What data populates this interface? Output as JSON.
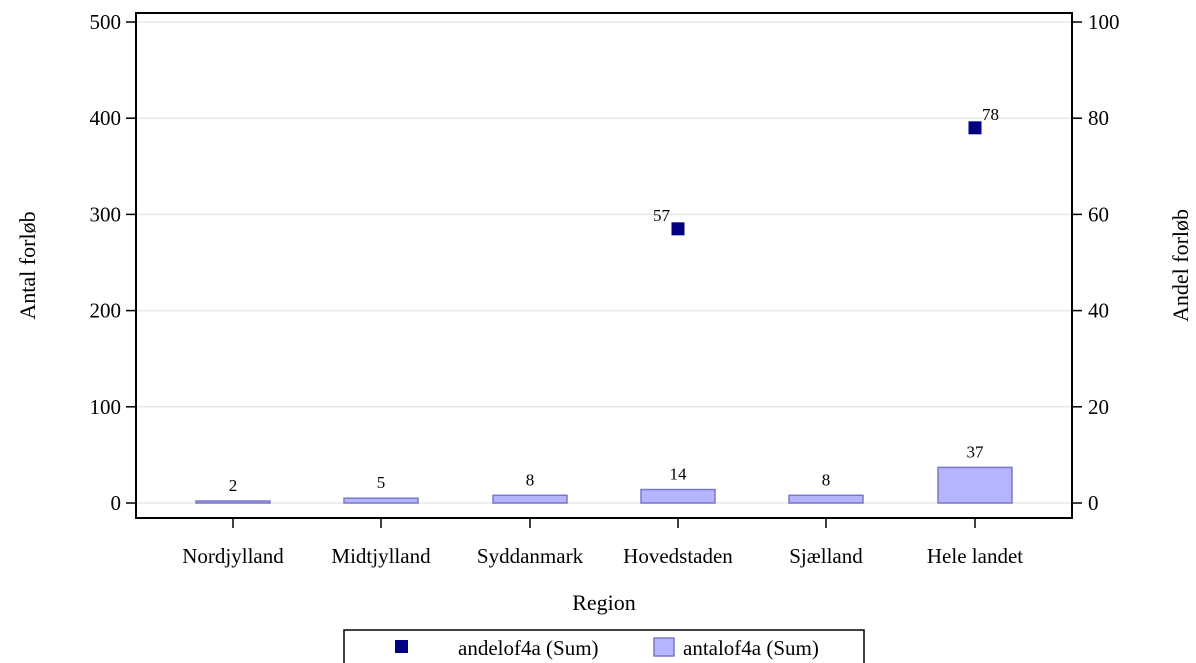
{
  "chart_data": {
    "type": "bar",
    "categories": [
      "Nordjylland",
      "Midtjylland",
      "Syddanmark",
      "Hovedstaden",
      "Sjælland",
      "Hele landet"
    ],
    "xlabel": "Region",
    "ylabel_left": "Antal forløb",
    "ylabel_right": "Andel forløb",
    "ylim_left": [
      0,
      500
    ],
    "ylim_right": [
      0,
      100
    ],
    "yticks_left": [
      0,
      100,
      200,
      300,
      400,
      500
    ],
    "yticks_right": [
      0,
      20,
      40,
      60,
      80,
      100
    ],
    "grid": true,
    "legend_position": "bottom",
    "series": [
      {
        "name": "antalof4a (Sum)",
        "type": "bar",
        "axis": "left",
        "values": [
          2,
          5,
          8,
          14,
          8,
          37
        ],
        "labels": [
          "2",
          "5",
          "8",
          "14",
          "8",
          "37"
        ],
        "fill": "#b4b4ff",
        "stroke": "#7878c8"
      },
      {
        "name": "andelof4a (Sum)",
        "type": "scatter",
        "axis": "right",
        "values": [
          null,
          null,
          null,
          57,
          null,
          78
        ],
        "labels": [
          "",
          "",
          "",
          "57",
          "",
          "78"
        ],
        "color": "#000080"
      }
    ]
  }
}
